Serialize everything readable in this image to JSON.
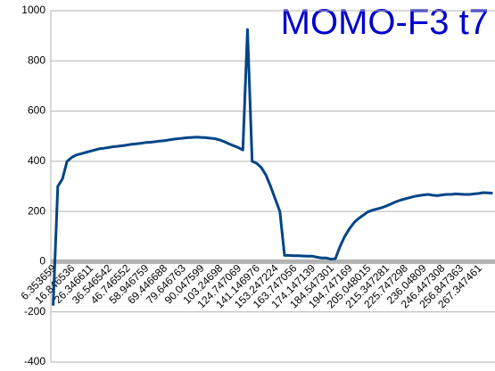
{
  "chart_data": {
    "type": "line",
    "title": "MOMO-F3 t7",
    "categories": [
      "6.353659",
      null,
      null,
      null,
      "16.846536",
      null,
      null,
      null,
      "26.346611",
      null,
      null,
      null,
      "36.546542",
      null,
      null,
      null,
      "46.746552",
      null,
      null,
      null,
      "58.946759",
      null,
      null,
      null,
      "69.446688",
      null,
      null,
      null,
      "79.646763",
      null,
      null,
      null,
      "90.047599",
      null,
      null,
      null,
      "103.24698",
      null,
      null,
      null,
      "124.747069",
      null,
      null,
      null,
      "141.146976",
      null,
      null,
      null,
      "153.247224",
      null,
      null,
      null,
      "163.747056",
      null,
      null,
      null,
      "174.147139",
      null,
      null,
      null,
      "184.547301",
      null,
      null,
      null,
      "194.747169",
      null,
      null,
      null,
      "205.048015",
      null,
      null,
      null,
      "215.347281",
      null,
      null,
      null,
      "225.747298",
      null,
      null,
      null,
      "236.04809",
      null,
      null,
      null,
      "246.447308",
      null,
      null,
      null,
      "256.847363",
      null,
      null,
      null,
      "267.347461",
      null,
      null,
      null
    ],
    "series": [
      {
        "color": "#004586",
        "values": [
          -175,
          300,
          330,
          400,
          415,
          425,
          430,
          435,
          440,
          445,
          450,
          452,
          455,
          458,
          460,
          462,
          465,
          468,
          470,
          472,
          475,
          476,
          478,
          480,
          482,
          485,
          488,
          490,
          492,
          494,
          495,
          496,
          495,
          494,
          492,
          490,
          485,
          478,
          470,
          462,
          455,
          445,
          925,
          400,
          392,
          375,
          345,
          300,
          250,
          200,
          25,
          25,
          24,
          24,
          23,
          22,
          22,
          18,
          15,
          15,
          10,
          12,
          60,
          100,
          130,
          155,
          172,
          185,
          198,
          205,
          210,
          215,
          222,
          230,
          238,
          245,
          250,
          255,
          260,
          263,
          266,
          268,
          265,
          263,
          266,
          268,
          268,
          270,
          269,
          268,
          268,
          270,
          272,
          275,
          274,
          273
        ]
      }
    ],
    "ylim": [
      -400,
      1000
    ],
    "yticks": [
      -400,
      -200,
      0,
      200,
      400,
      600,
      800,
      1000
    ],
    "grid": true,
    "title_color": "#0000cc",
    "axis_color": "#b3b3b3"
  }
}
